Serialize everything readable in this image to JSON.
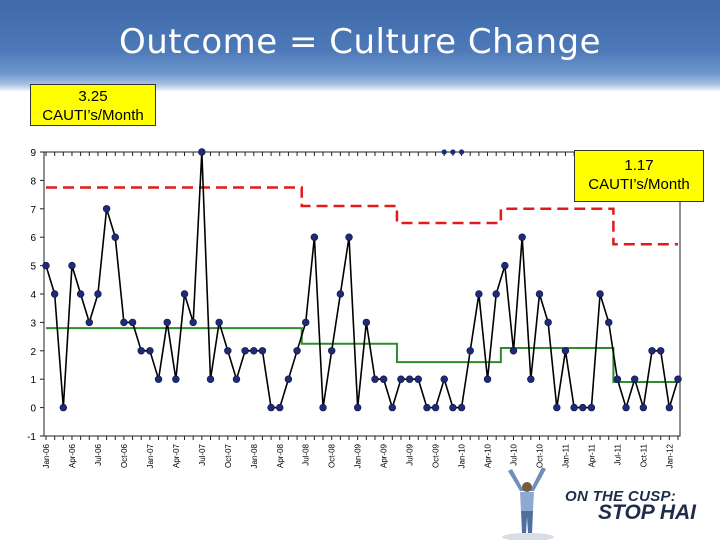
{
  "slide": {
    "title": "Outcome = Culture Change",
    "callout_left": "3.25\nCAUTI’s/Month",
    "callout_right": "1.17\nCAUTI’s/Month",
    "logo_top": "ON THE CUSP:",
    "logo_bottom": "STOP HAI"
  },
  "colors": {
    "header": "#4d79b8",
    "data_line": "#000000",
    "markers": "#1f2a78",
    "center_line": "#2e8b2e",
    "ucl_line": "#e11b1b",
    "callout_bg": "#ffff00"
  },
  "chart_data": {
    "type": "line",
    "title": "",
    "xlabel": "",
    "ylabel": "",
    "ylim": [
      -1,
      9
    ],
    "yticks": [
      -1,
      0,
      1,
      2,
      3,
      4,
      5,
      6,
      7,
      8,
      9
    ],
    "grid": false,
    "x_tick_labels": [
      "Jan-06",
      "Apr-06",
      "Jul-06",
      "Oct-06",
      "Jan-07",
      "Apr-07",
      "Jul-07",
      "Oct-07",
      "Jan-08",
      "Apr-08",
      "Jul-08",
      "Oct-08",
      "Jan-09",
      "Apr-09",
      "Jul-09",
      "Oct-09",
      "Jan-10",
      "Apr-10",
      "Jul-10",
      "Oct-10",
      "Jan-11",
      "Apr-11",
      "Jul-11",
      "Oct-11",
      "Jan-12"
    ],
    "series": [
      {
        "values": [
          5,
          4,
          0,
          5,
          4,
          3,
          4,
          7,
          6,
          3,
          3,
          2,
          2,
          1,
          3,
          1,
          4,
          3,
          9,
          1,
          3,
          2,
          1,
          2,
          2,
          2,
          0,
          0,
          1,
          2,
          3,
          6,
          0,
          2,
          4,
          6,
          0,
          3,
          1,
          1,
          0,
          1,
          1,
          1,
          0,
          0,
          1,
          0,
          0,
          2,
          4,
          1,
          4,
          5,
          2,
          6,
          1,
          4,
          3,
          0,
          2,
          0,
          0,
          0,
          4,
          3,
          1,
          0,
          1,
          0,
          2,
          2,
          0,
          1
        ]
      },
      {
        "values": [
          2.8,
          2.8,
          2.8,
          2.8,
          2.8,
          2.8,
          2.8,
          2.8,
          2.8,
          2.8,
          2.8,
          2.8,
          2.8,
          2.8,
          2.8,
          2.8,
          2.8,
          2.8,
          2.8,
          2.8,
          2.8,
          2.8,
          2.8,
          2.8,
          2.8,
          2.8,
          2.8,
          2.8,
          2.8,
          2.8,
          2.25,
          2.25,
          2.25,
          2.25,
          2.25,
          2.25,
          2.25,
          2.25,
          2.25,
          2.25,
          2.25,
          1.6,
          1.6,
          1.6,
          1.6,
          1.6,
          1.6,
          1.6,
          1.6,
          1.6,
          1.6,
          1.6,
          1.6,
          2.1,
          2.1,
          2.1,
          2.1,
          2.1,
          2.1,
          2.1,
          2.1,
          2.1,
          2.1,
          2.1,
          2.1,
          2.1,
          0.9,
          0.9,
          0.9,
          0.9,
          0.9,
          0.9,
          0.9,
          0.9
        ]
      },
      {
        "values": [
          7.75,
          7.75,
          7.75,
          7.75,
          7.75,
          7.75,
          7.75,
          7.75,
          7.75,
          7.75,
          7.75,
          7.75,
          7.75,
          7.75,
          7.75,
          7.75,
          7.75,
          7.75,
          7.75,
          7.75,
          7.75,
          7.75,
          7.75,
          7.75,
          7.75,
          7.75,
          7.75,
          7.75,
          7.75,
          7.75,
          7.1,
          7.1,
          7.1,
          7.1,
          7.1,
          7.1,
          7.1,
          7.1,
          7.1,
          7.1,
          7.1,
          6.5,
          6.5,
          6.5,
          6.5,
          6.5,
          6.5,
          6.5,
          6.5,
          6.5,
          6.5,
          6.5,
          6.5,
          7.0,
          7.0,
          7.0,
          7.0,
          7.0,
          7.0,
          7.0,
          7.0,
          7.0,
          7.0,
          7.0,
          7.0,
          7.0,
          5.75,
          5.75,
          5.75,
          5.75,
          5.75,
          5.75,
          5.75,
          5.75
        ]
      }
    ],
    "top_axis_markers": [
      46,
      47,
      48
    ]
  }
}
